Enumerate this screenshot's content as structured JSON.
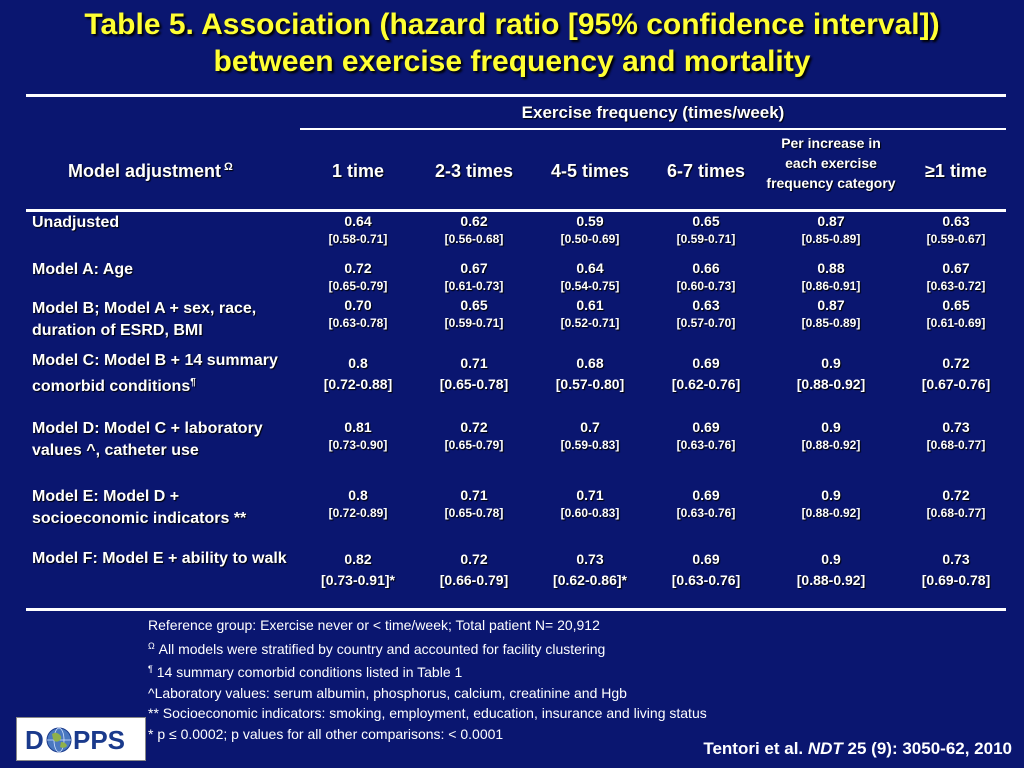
{
  "title": {
    "line1": "Table 5. Association (hazard ratio [95% confidence interval])",
    "line2": "between exercise frequency and mortality"
  },
  "table": {
    "group_header": "Exercise frequency (times/week)",
    "model_header": "Model adjustment",
    "model_header_sup": "Ω",
    "columns": [
      "1 time",
      "2-3 times",
      "4-5 times",
      "6-7 times",
      "Per increase in each exercise frequency category",
      "≥1 time"
    ],
    "rows": [
      {
        "label": "Unadjusted",
        "label_sup": "",
        "cells": [
          {
            "hr": "0.64",
            "ci": "[0.58-0.71]"
          },
          {
            "hr": "0.62",
            "ci": "[0.56-0.68]"
          },
          {
            "hr": "0.59",
            "ci": "[0.50-0.69]"
          },
          {
            "hr": "0.65",
            "ci": "[0.59-0.71]"
          },
          {
            "hr": "0.87",
            "ci": "[0.85-0.89]"
          },
          {
            "hr": "0.63",
            "ci": "[0.59-0.67]"
          }
        ]
      },
      {
        "label": "Model A: Age",
        "label_sup": "",
        "cells": [
          {
            "hr": "0.72",
            "ci": "[0.65-0.79]"
          },
          {
            "hr": "0.67",
            "ci": "[0.61-0.73]"
          },
          {
            "hr": "0.64",
            "ci": "[0.54-0.75]"
          },
          {
            "hr": "0.66",
            "ci": "[0.60-0.73]"
          },
          {
            "hr": "0.88",
            "ci": "[0.86-0.91]"
          },
          {
            "hr": "0.67",
            "ci": "[0.63-0.72]"
          }
        ]
      },
      {
        "label": "Model B; Model A + sex, race, duration of ESRD, BMI",
        "label_sup": "",
        "cells": [
          {
            "hr": "0.70",
            "ci": "[0.63-0.78]"
          },
          {
            "hr": "0.65",
            "ci": "[0.59-0.71]"
          },
          {
            "hr": "0.61",
            "ci": "[0.52-0.71]"
          },
          {
            "hr": "0.63",
            "ci": "[0.57-0.70]"
          },
          {
            "hr": "0.87",
            "ci": "[0.85-0.89]"
          },
          {
            "hr": "0.65",
            "ci": "[0.61-0.69]"
          }
        ]
      },
      {
        "label": "Model C: Model B + 14 summary comorbid conditions",
        "label_sup": "¶",
        "cells": [
          {
            "hr": "0.8",
            "ci": "[0.72-0.88]"
          },
          {
            "hr": "0.71",
            "ci": "[0.65-0.78]"
          },
          {
            "hr": "0.68",
            "ci": "[0.57-0.80]"
          },
          {
            "hr": "0.69",
            "ci": "[0.62-0.76]"
          },
          {
            "hr": "0.9",
            "ci": "[0.88-0.92]"
          },
          {
            "hr": "0.72",
            "ci": "[0.67-0.76]"
          }
        ]
      },
      {
        "label": "Model D: Model C + laboratory values ^, catheter use",
        "label_sup": "",
        "cells": [
          {
            "hr": "0.81",
            "ci": "[0.73-0.90]"
          },
          {
            "hr": "0.72",
            "ci": "[0.65-0.79]"
          },
          {
            "hr": "0.7",
            "ci": "[0.59-0.83]"
          },
          {
            "hr": "0.69",
            "ci": "[0.63-0.76]"
          },
          {
            "hr": "0.9",
            "ci": "[0.88-0.92]"
          },
          {
            "hr": "0.73",
            "ci": "[0.68-0.77]"
          }
        ]
      },
      {
        "label": "Model E: Model D + socioeconomic indicators **",
        "label_sup": "",
        "cells": [
          {
            "hr": "0.8",
            "ci": "[0.72-0.89]"
          },
          {
            "hr": "0.71",
            "ci": "[0.65-0.78]"
          },
          {
            "hr": "0.71",
            "ci": "[0.60-0.83]"
          },
          {
            "hr": "0.69",
            "ci": "[0.63-0.76]"
          },
          {
            "hr": "0.9",
            "ci": "[0.88-0.92]"
          },
          {
            "hr": "0.72",
            "ci": "[0.68-0.77]"
          }
        ]
      },
      {
        "label": "Model F: Model E + ability to walk",
        "label_sup": "",
        "cells": [
          {
            "hr": "0.82",
            "ci": "[0.73-0.91]*"
          },
          {
            "hr": "0.72",
            "ci": "[0.66-0.79]"
          },
          {
            "hr": "0.73",
            "ci": "[0.62-0.86]*"
          },
          {
            "hr": "0.69",
            "ci": "[0.63-0.76]"
          },
          {
            "hr": "0.9",
            "ci": "[0.88-0.92]"
          },
          {
            "hr": "0.73",
            "ci": "[0.69-0.78]"
          }
        ]
      }
    ]
  },
  "footnotes": [
    {
      "sym": "",
      "text": "Reference group: Exercise never or < time/week; Total patient N= 20,912"
    },
    {
      "sym": "Ω",
      "text": " All models were stratified by country and accounted for facility clustering"
    },
    {
      "sym": "¶",
      "text": " 14 summary comorbid conditions listed in Table 1"
    },
    {
      "sym": "",
      "text": "^Laboratory values: serum albumin, phosphorus, calcium, creatinine and Hgb"
    },
    {
      "sym": "",
      "text": "** Socioeconomic indicators: smoking, employment, education, insurance and living status"
    },
    {
      "sym": "",
      "text": "* p ≤ 0.0002; p values for all other comparisons: < 0.0001"
    }
  ],
  "citation": {
    "author": "Tentori et al. ",
    "journal": "NDT",
    "ref": " 25 (9): 3050-62, 2010"
  },
  "logo": {
    "text_left": "D",
    "text_right": "PPS"
  },
  "colors": {
    "background": "#0a1670",
    "title": "#ffff33",
    "text": "#ffffff"
  }
}
